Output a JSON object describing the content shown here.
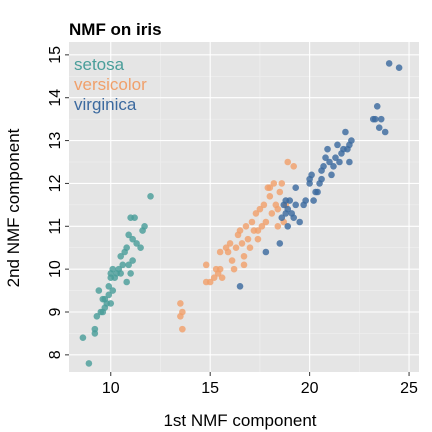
{
  "chart_data": {
    "type": "scatter",
    "title": "NMF on iris",
    "xlabel": "1st NMF component",
    "ylabel": "2nd NMF component",
    "xlim": [
      7.9,
      25.5
    ],
    "ylim": [
      7.6,
      15.3
    ],
    "xticks": [
      10,
      15,
      20,
      25
    ],
    "yticks": [
      8,
      9,
      10,
      11,
      12,
      13,
      14,
      15
    ],
    "grid": true,
    "background": "#e5e5e5",
    "legend_position": "top-left",
    "series": [
      {
        "name": "setosa",
        "color": "#4a9e9a",
        "points": [
          [
            8.6,
            8.4
          ],
          [
            8.9,
            7.8
          ],
          [
            9.2,
            8.6
          ],
          [
            9.2,
            8.5
          ],
          [
            9.3,
            8.9
          ],
          [
            9.4,
            9.5
          ],
          [
            9.5,
            9.0
          ],
          [
            9.6,
            9.3
          ],
          [
            9.7,
            9.1
          ],
          [
            9.7,
            9.3
          ],
          [
            9.8,
            9.2
          ],
          [
            9.9,
            9.6
          ],
          [
            9.9,
            9.4
          ],
          [
            10.0,
            9.2
          ],
          [
            10.0,
            9.8
          ],
          [
            10.1,
            10.0
          ],
          [
            10.1,
            9.5
          ],
          [
            10.2,
            9.8
          ],
          [
            10.3,
            9.9
          ],
          [
            10.4,
            10.0
          ],
          [
            10.5,
            10.3
          ],
          [
            10.5,
            9.9
          ],
          [
            10.6,
            10.1
          ],
          [
            10.7,
            10.4
          ],
          [
            10.8,
            10.5
          ],
          [
            10.8,
            9.7
          ],
          [
            10.9,
            10.1
          ],
          [
            10.9,
            10.8
          ],
          [
            11.0,
            9.9
          ],
          [
            11.0,
            11.2
          ],
          [
            11.1,
            10.7
          ],
          [
            11.1,
            10.2
          ],
          [
            11.2,
            11.2
          ],
          [
            11.3,
            10.6
          ],
          [
            11.5,
            10.5
          ],
          [
            11.6,
            10.9
          ],
          [
            11.7,
            11.0
          ],
          [
            12.0,
            11.7
          ],
          [
            9.6,
            9.0
          ],
          [
            10.0,
            9.9
          ]
        ]
      },
      {
        "name": "versicolor",
        "color": "#f0a06b",
        "points": [
          [
            13.5,
            9.2
          ],
          [
            13.5,
            8.9
          ],
          [
            13.6,
            8.6
          ],
          [
            13.6,
            9.0
          ],
          [
            14.8,
            9.7
          ],
          [
            14.8,
            10.1
          ],
          [
            15.0,
            9.7
          ],
          [
            15.3,
            10.0
          ],
          [
            15.4,
            9.9
          ],
          [
            15.5,
            10.0
          ],
          [
            15.5,
            10.4
          ],
          [
            15.6,
            9.8
          ],
          [
            15.8,
            10.5
          ],
          [
            15.9,
            10.4
          ],
          [
            16.0,
            10.6
          ],
          [
            16.1,
            10.2
          ],
          [
            16.2,
            10.0
          ],
          [
            16.3,
            10.5
          ],
          [
            16.4,
            10.8
          ],
          [
            16.5,
            10.9
          ],
          [
            16.6,
            10.6
          ],
          [
            16.7,
            10.3
          ],
          [
            16.8,
            11.0
          ],
          [
            16.9,
            10.7
          ],
          [
            17.0,
            10.5
          ],
          [
            17.1,
            11.1
          ],
          [
            17.2,
            10.9
          ],
          [
            17.3,
            11.3
          ],
          [
            17.4,
            10.9
          ],
          [
            17.5,
            11.4
          ],
          [
            17.6,
            11.0
          ],
          [
            17.7,
            11.5
          ],
          [
            17.8,
            11.1
          ],
          [
            17.9,
            11.9
          ],
          [
            18.0,
            11.7
          ],
          [
            18.1,
            11.3
          ],
          [
            18.2,
            12.0
          ],
          [
            18.3,
            11.5
          ],
          [
            18.4,
            11.4
          ],
          [
            18.5,
            11.8
          ],
          [
            18.6,
            12.0
          ],
          [
            18.7,
            11.1
          ],
          [
            18.8,
            11.5
          ],
          [
            18.9,
            12.5
          ],
          [
            19.2,
            12.4
          ],
          [
            18.4,
            11.0
          ],
          [
            17.4,
            10.7
          ],
          [
            18.0,
            11.9
          ],
          [
            16.7,
            10.1
          ],
          [
            15.2,
            9.8
          ]
        ]
      },
      {
        "name": "virginica",
        "color": "#3c6a9f",
        "points": [
          [
            16.5,
            9.6
          ],
          [
            17.8,
            10.4
          ],
          [
            18.5,
            10.6
          ],
          [
            18.6,
            11.2
          ],
          [
            18.7,
            11.5
          ],
          [
            18.8,
            11.3
          ],
          [
            18.9,
            11.4
          ],
          [
            19.0,
            11.6
          ],
          [
            19.1,
            11.3
          ],
          [
            19.2,
            11.2
          ],
          [
            19.3,
            11.9
          ],
          [
            19.5,
            11.1
          ],
          [
            19.7,
            11.5
          ],
          [
            20.0,
            12.0
          ],
          [
            20.1,
            12.2
          ],
          [
            20.2,
            11.6
          ],
          [
            20.4,
            11.8
          ],
          [
            20.5,
            12.0
          ],
          [
            20.6,
            12.3
          ],
          [
            20.7,
            12.4
          ],
          [
            20.8,
            12.6
          ],
          [
            20.9,
            12.8
          ],
          [
            21.0,
            12.5
          ],
          [
            21.1,
            12.2
          ],
          [
            21.3,
            12.6
          ],
          [
            21.4,
            12.9
          ],
          [
            21.5,
            12.5
          ],
          [
            21.7,
            12.8
          ],
          [
            21.8,
            13.2
          ],
          [
            21.9,
            12.8
          ],
          [
            22.0,
            12.5
          ],
          [
            22.1,
            13.0
          ],
          [
            23.2,
            13.5
          ],
          [
            23.4,
            13.8
          ],
          [
            23.5,
            13.3
          ],
          [
            23.6,
            13.5
          ],
          [
            23.8,
            13.2
          ],
          [
            24.0,
            14.8
          ],
          [
            24.5,
            14.7
          ],
          [
            18.8,
            11.6
          ],
          [
            20.0,
            12.1
          ],
          [
            21.2,
            12.4
          ],
          [
            19.8,
            11.6
          ],
          [
            22.0,
            12.9
          ],
          [
            20.6,
            12.1
          ],
          [
            18.9,
            11.0
          ],
          [
            19.3,
            11.5
          ],
          [
            21.6,
            12.7
          ],
          [
            23.3,
            13.5
          ],
          [
            20.3,
            11.8
          ]
        ]
      }
    ]
  }
}
